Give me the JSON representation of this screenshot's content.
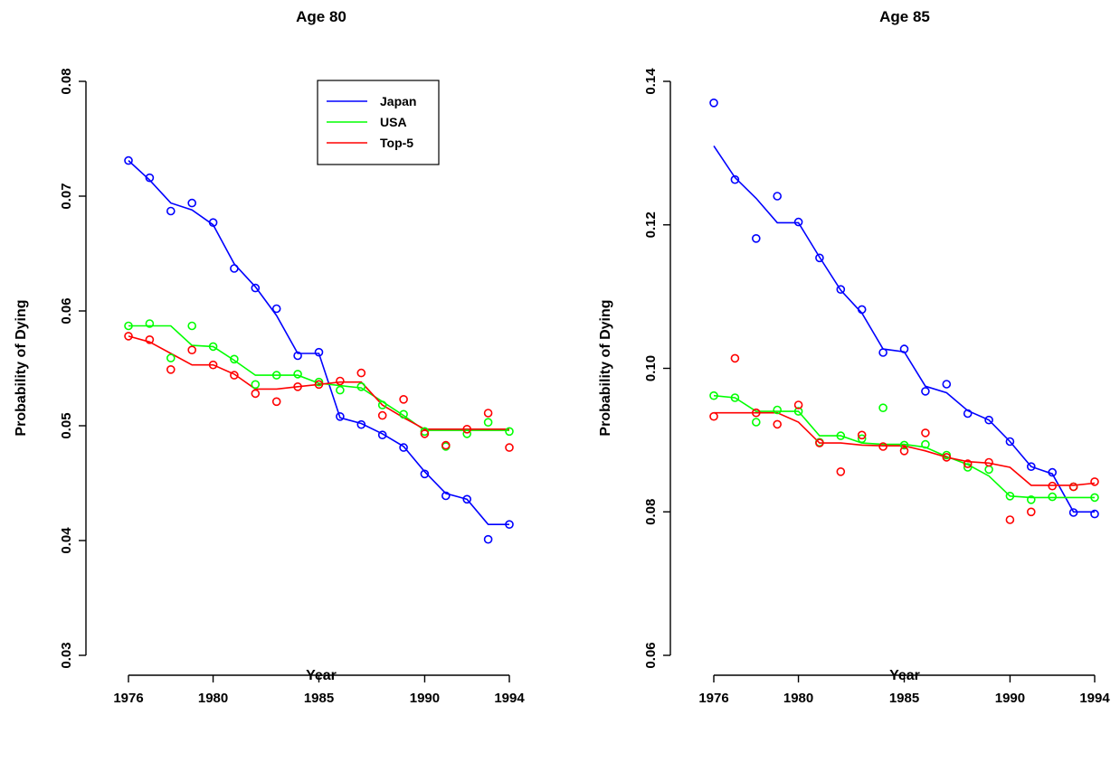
{
  "chart_data": [
    {
      "type": "scatter",
      "title": "Age 80",
      "xlabel": "Year",
      "ylabel": "Probability of Dying",
      "xlim": [
        1976,
        1994
      ],
      "ylim": [
        0.03,
        0.08
      ],
      "xticks": [
        "1976",
        "1980",
        "1985",
        "1990",
        "1994"
      ],
      "yticks": [
        "0.03",
        "0.04",
        "0.05",
        "0.06",
        "0.07",
        "0.08"
      ],
      "grid": false,
      "legend_position": "top-center",
      "x": [
        1976,
        1977,
        1978,
        1979,
        1980,
        1981,
        1982,
        1983,
        1984,
        1985,
        1986,
        1987,
        1988,
        1989,
        1990,
        1991,
        1992,
        1993,
        1994
      ],
      "series": [
        {
          "name": "Japan",
          "color": "#0000ff",
          "points": [
            0.0731,
            0.0716,
            0.0687,
            0.0694,
            0.0677,
            0.0637,
            0.062,
            0.0602,
            0.0561,
            0.0564,
            0.0508,
            0.0501,
            0.0492,
            0.0481,
            0.0458,
            0.0439,
            0.0436,
            0.0401,
            0.0414
          ],
          "smooth": [
            0.0731,
            0.0714,
            0.0694,
            0.0688,
            0.0675,
            0.0641,
            0.0621,
            0.0596,
            0.0563,
            0.0563,
            0.0507,
            0.0502,
            0.0493,
            0.0482,
            0.046,
            0.0441,
            0.0436,
            0.0414,
            0.0414
          ]
        },
        {
          "name": "USA",
          "color": "#00ff00",
          "points": [
            0.0587,
            0.0589,
            0.0559,
            0.0587,
            0.0569,
            0.0558,
            0.0536,
            0.0544,
            0.0545,
            0.0538,
            0.0531,
            0.0534,
            0.0518,
            0.051,
            0.0495,
            0.0482,
            0.0493,
            0.0503,
            0.0495
          ],
          "smooth": [
            0.0587,
            0.0587,
            0.0587,
            0.057,
            0.0569,
            0.0557,
            0.0544,
            0.0544,
            0.0544,
            0.0537,
            0.0535,
            0.0533,
            0.0521,
            0.0509,
            0.0496,
            0.0496,
            0.0496,
            0.0496,
            0.0496
          ]
        },
        {
          "name": "Top-5",
          "color": "#ff0000",
          "points": [
            0.0578,
            0.0575,
            0.0549,
            0.0566,
            0.0553,
            0.0544,
            0.0528,
            0.0521,
            0.0534,
            0.0536,
            0.0539,
            0.0546,
            0.0509,
            0.0523,
            0.0493,
            0.0483,
            0.0497,
            0.0511,
            0.0481
          ],
          "smooth": [
            0.0578,
            0.0573,
            0.0563,
            0.0553,
            0.0553,
            0.0545,
            0.0532,
            0.0532,
            0.0534,
            0.0536,
            0.0538,
            0.0538,
            0.0518,
            0.0507,
            0.0497,
            0.0497,
            0.0497,
            0.0497,
            0.0497
          ]
        }
      ]
    },
    {
      "type": "scatter",
      "title": "Age 85",
      "xlabel": "Year",
      "ylabel": "Probability of Dying",
      "xlim": [
        1976,
        1994
      ],
      "ylim": [
        0.06,
        0.14
      ],
      "xticks": [
        "1976",
        "1980",
        "1985",
        "1990",
        "1994"
      ],
      "yticks": [
        "0.06",
        "0.08",
        "0.10",
        "0.12",
        "0.14"
      ],
      "grid": false,
      "x": [
        1976,
        1977,
        1978,
        1979,
        1980,
        1981,
        1982,
        1983,
        1984,
        1985,
        1986,
        1987,
        1988,
        1989,
        1990,
        1991,
        1992,
        1993,
        1994
      ],
      "series": [
        {
          "name": "Japan",
          "color": "#0000ff",
          "points": [
            0.137,
            0.1263,
            0.1181,
            0.124,
            0.1204,
            0.1154,
            0.111,
            0.1082,
            0.1022,
            0.1027,
            0.0968,
            0.0978,
            0.0937,
            0.0928,
            0.0898,
            0.0863,
            0.0855,
            0.0799,
            0.0797
          ],
          "smooth": [
            0.131,
            0.1266,
            0.1237,
            0.1203,
            0.1203,
            0.1155,
            0.1109,
            0.1077,
            0.1027,
            0.1023,
            0.0975,
            0.0966,
            0.0941,
            0.0928,
            0.0898,
            0.0863,
            0.0853,
            0.08,
            0.08
          ]
        },
        {
          "name": "USA",
          "color": "#00ff00",
          "points": [
            0.0962,
            0.0959,
            0.0925,
            0.0942,
            0.094,
            0.0897,
            0.0906,
            0.0902,
            0.0945,
            0.0893,
            0.0894,
            0.0879,
            0.0862,
            0.0859,
            0.0822,
            0.0817,
            0.0821,
            0.0835,
            0.082
          ],
          "smooth": [
            0.0962,
            0.0959,
            0.094,
            0.094,
            0.094,
            0.0906,
            0.0906,
            0.0896,
            0.0894,
            0.0894,
            0.089,
            0.0877,
            0.0866,
            0.085,
            0.0822,
            0.082,
            0.082,
            0.082,
            0.082
          ]
        },
        {
          "name": "Top-5",
          "color": "#ff0000",
          "points": [
            0.0933,
            0.1014,
            0.0938,
            0.0922,
            0.0949,
            0.0896,
            0.0856,
            0.0907,
            0.0891,
            0.0885,
            0.091,
            0.0876,
            0.0867,
            0.0869,
            0.0789,
            0.08,
            0.0836,
            0.0835,
            0.0842
          ],
          "smooth": [
            0.0938,
            0.0938,
            0.0938,
            0.0938,
            0.0925,
            0.0896,
            0.0896,
            0.0893,
            0.0892,
            0.0892,
            0.0885,
            0.0876,
            0.087,
            0.0868,
            0.0862,
            0.0837,
            0.0837,
            0.0837,
            0.084
          ]
        }
      ]
    }
  ]
}
